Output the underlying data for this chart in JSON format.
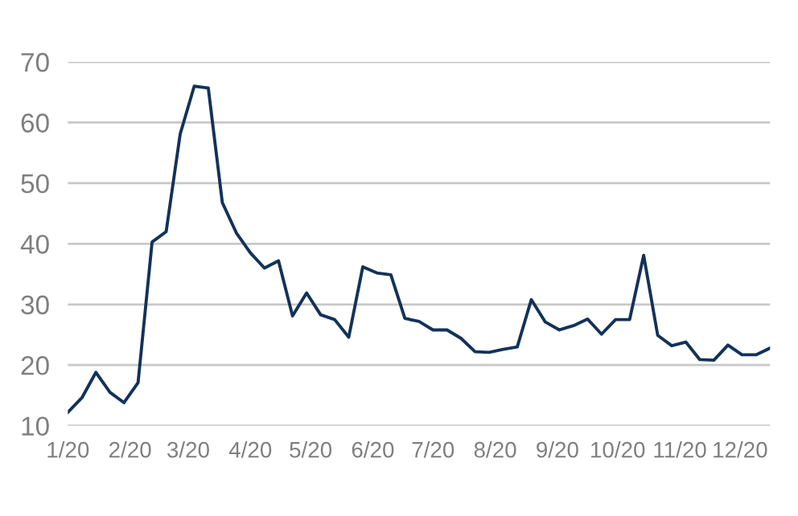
{
  "chart_data": {
    "type": "line",
    "color": "#12325a",
    "grid": "y",
    "marker": "none",
    "line_style": "solid",
    "x": [
      "2020-01-01",
      "2020-01-08",
      "2020-01-15",
      "2020-01-22",
      "2020-01-29",
      "2020-02-05",
      "2020-02-12",
      "2020-02-19",
      "2020-02-26",
      "2020-03-04",
      "2020-03-11",
      "2020-03-18",
      "2020-03-25",
      "2020-04-01",
      "2020-04-08",
      "2020-04-15",
      "2020-04-22",
      "2020-04-29",
      "2020-05-06",
      "2020-05-13",
      "2020-05-20",
      "2020-05-27",
      "2020-06-03",
      "2020-06-10",
      "2020-06-17",
      "2020-06-24",
      "2020-07-01",
      "2020-07-08",
      "2020-07-15",
      "2020-07-22",
      "2020-07-29",
      "2020-08-05",
      "2020-08-12",
      "2020-08-19",
      "2020-08-26",
      "2020-09-02",
      "2020-09-09",
      "2020-09-16",
      "2020-09-23",
      "2020-09-30",
      "2020-10-07",
      "2020-10-14",
      "2020-10-21",
      "2020-10-28",
      "2020-11-04",
      "2020-11-11",
      "2020-11-18",
      "2020-11-25",
      "2020-12-02",
      "2020-12-09",
      "2020-12-16"
    ],
    "values": [
      12.2,
      14.6,
      18.8,
      15.5,
      13.8,
      17.1,
      40.3,
      42.0,
      58.1,
      66.0,
      65.7,
      46.8,
      41.8,
      38.5,
      36.0,
      37.2,
      28.1,
      31.9,
      28.3,
      27.5,
      24.6,
      36.2,
      35.2,
      34.9,
      27.7,
      27.2,
      25.8,
      25.8,
      24.4,
      22.2,
      22.1,
      22.6,
      23.0,
      30.8,
      27.1,
      25.8,
      26.5,
      27.6,
      25.1,
      27.5,
      27.5,
      38.1,
      24.9,
      23.2,
      23.8,
      20.9,
      20.8,
      23.3,
      21.7,
      21.7,
      22.8
    ],
    "xlim": [
      "2020-01-01",
      "2020-12-16"
    ],
    "xticks": [
      {
        "value": "2020-01-01",
        "label": "1/20"
      },
      {
        "value": "2020-02-01",
        "label": "2/20"
      },
      {
        "value": "2020-03-01",
        "label": "3/20"
      },
      {
        "value": "2020-04-01",
        "label": "4/20"
      },
      {
        "value": "2020-05-01",
        "label": "5/20"
      },
      {
        "value": "2020-06-01",
        "label": "6/20"
      },
      {
        "value": "2020-07-01",
        "label": "7/20"
      },
      {
        "value": "2020-08-01",
        "label": "8/20"
      },
      {
        "value": "2020-09-01",
        "label": "9/20"
      },
      {
        "value": "2020-10-01",
        "label": "10/20"
      },
      {
        "value": "2020-11-01",
        "label": "11/20"
      },
      {
        "value": "2020-12-01",
        "label": "12/20"
      }
    ],
    "ylim": [
      10,
      70
    ],
    "yticks": [
      10,
      20,
      30,
      40,
      50,
      60,
      70
    ]
  }
}
